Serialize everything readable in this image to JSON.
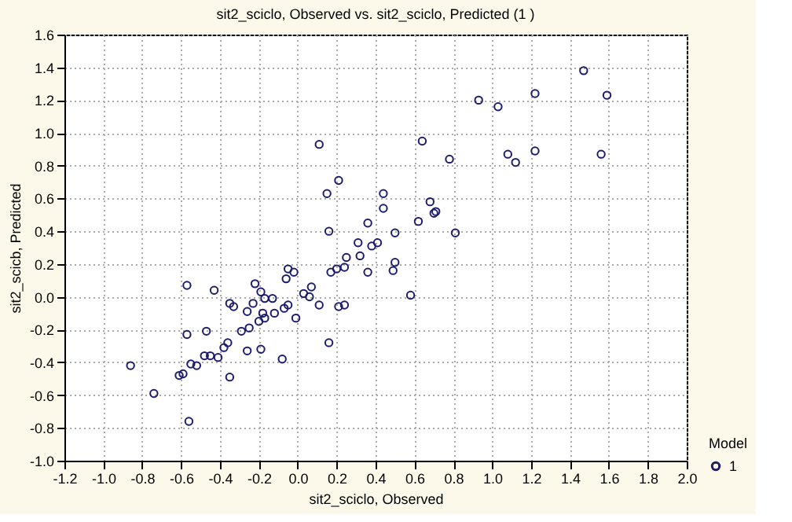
{
  "chart_data": {
    "type": "scatter",
    "title": "sit2_sciclo, Observed vs.  sit2_sciclo, Predicted (1 )",
    "xlabel": "sit2_sciclo, Observed",
    "ylabel": "sit2_scicb, Predicted",
    "legend_title": "Model",
    "legend": "bottom right",
    "grid": true,
    "marker": "circle",
    "xlim": [
      -1.2,
      2.0
    ],
    "ylim": [
      -1.0,
      1.6
    ],
    "xticks": [
      -1.2,
      {
        "value": -1.0,
        "label": "-1.0"
      },
      -0.8,
      -0.6,
      -0.4,
      -0.2,
      {
        "value": 0,
        "label": "0.0"
      },
      0.2,
      0.4,
      0.6,
      0.8,
      {
        "value": 1.0,
        "label": "1.0"
      },
      1.2,
      1.4,
      1.6,
      1.8,
      {
        "value": 2.0,
        "label": "2.0"
      }
    ],
    "yticks": [
      {
        "value": -1.0,
        "label": "-1.0"
      },
      -0.8,
      -0.6,
      -0.4,
      -0.2,
      {
        "value": 0,
        "label": "0.0"
      },
      0.2,
      0.4,
      0.6,
      0.8,
      {
        "value": 1.0,
        "label": "1.0"
      },
      1.2,
      1.4,
      1.6
    ],
    "series": [
      {
        "name": "1",
        "color": "#1c1c6e",
        "x": [
          0.11,
          0.21,
          0.15,
          0.44,
          0.44,
          0.36,
          0.16,
          0.31,
          0.38,
          0.41,
          0.32,
          0.25,
          0.24,
          0.2,
          0.17,
          0.36,
          -0.05,
          -0.02,
          -0.06,
          -0.57,
          -0.43,
          -0.22,
          -0.19,
          0.07,
          0.03,
          0.06,
          -0.17,
          -0.13,
          -0.23,
          -0.35,
          -0.33,
          -0.26,
          -0.18,
          -0.12,
          -0.07,
          -0.05,
          0.11,
          0.21,
          0.24,
          -0.17,
          -0.2,
          -0.01,
          -0.25,
          -0.29,
          -0.47,
          -0.57,
          -0.36,
          -0.38,
          -0.26,
          -0.19,
          0.16,
          -0.48,
          -0.45,
          -0.41,
          -0.55,
          -0.52,
          -0.08,
          -0.86,
          -0.61,
          -0.59,
          -0.35,
          -0.74,
          -0.56,
          1.47,
          1.22,
          1.59,
          0.93,
          1.03,
          0.64,
          0.78,
          1.08,
          1.12,
          1.22,
          1.56,
          0.68,
          0.71,
          0.7,
          0.62,
          0.5,
          0.81,
          0.5,
          0.49,
          0.58
        ],
        "values": [
          0.93,
          0.71,
          0.63,
          0.63,
          0.54,
          0.45,
          0.4,
          0.33,
          0.31,
          0.33,
          0.25,
          0.24,
          0.18,
          0.17,
          0.15,
          0.15,
          0.17,
          0.15,
          0.11,
          0.07,
          0.04,
          0.08,
          0.03,
          0.06,
          0.02,
          0.0,
          -0.01,
          -0.01,
          -0.04,
          -0.04,
          -0.06,
          -0.09,
          -0.1,
          -0.1,
          -0.07,
          -0.05,
          -0.05,
          -0.06,
          -0.05,
          -0.13,
          -0.15,
          -0.13,
          -0.19,
          -0.21,
          -0.21,
          -0.23,
          -0.28,
          -0.31,
          -0.33,
          -0.32,
          -0.28,
          -0.36,
          -0.36,
          -0.37,
          -0.41,
          -0.42,
          -0.38,
          -0.42,
          -0.48,
          -0.47,
          -0.49,
          -0.59,
          -0.76,
          1.38,
          1.24,
          1.23,
          1.2,
          1.16,
          0.95,
          0.84,
          0.87,
          0.82,
          0.89,
          0.87,
          0.58,
          0.52,
          0.51,
          0.46,
          0.39,
          0.39,
          0.21,
          0.16,
          0.01
        ]
      }
    ]
  }
}
